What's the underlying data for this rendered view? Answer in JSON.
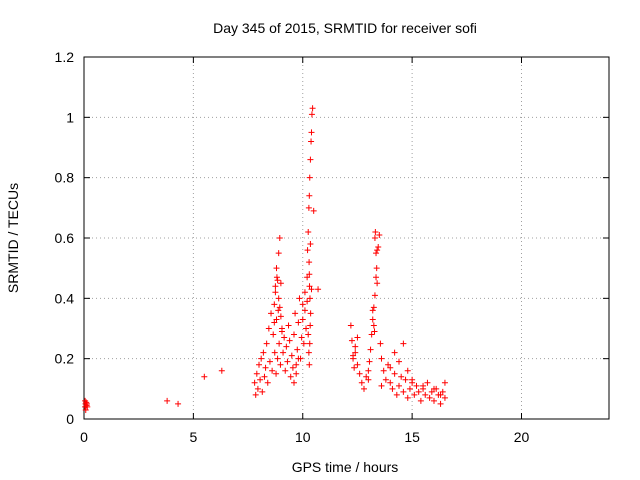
{
  "chart_data": {
    "type": "scatter",
    "title": "Day 345 of 2015, SRMTID for receiver sofi",
    "xlabel": "GPS time / hours",
    "ylabel": "SRMTID / TECUs",
    "xlim": [
      0,
      24
    ],
    "ylim": [
      0,
      1.2
    ],
    "xticks": [
      0,
      5,
      10,
      15,
      20
    ],
    "xtick_labels": [
      "0",
      "5",
      "10",
      "15",
      "20"
    ],
    "yticks": [
      0,
      0.2,
      0.4,
      0.6,
      0.8,
      1.0,
      1.2
    ],
    "ytick_labels": [
      "0",
      "0.2",
      "0.4",
      "0.6",
      "0.8",
      "1",
      "1.2"
    ],
    "grid": true,
    "marker": "+",
    "series": [
      {
        "name": "SRMTID",
        "color": "#ff0000",
        "x": [
          0.05,
          0.05,
          0.07,
          0.08,
          0.1,
          0.12,
          0.13,
          0.15,
          3.8,
          4.3,
          5.5,
          6.3,
          7.8,
          7.85,
          7.9,
          7.95,
          8.0,
          8.05,
          8.1,
          8.15,
          8.2,
          8.25,
          8.3,
          8.35,
          8.4,
          8.45,
          8.5,
          8.55,
          8.6,
          8.65,
          8.7,
          8.72,
          8.75,
          8.78,
          8.8,
          8.82,
          8.85,
          8.88,
          8.9,
          8.92,
          8.95,
          8.98,
          9.0,
          9.05,
          9.1,
          9.15,
          9.2,
          9.25,
          9.3,
          9.35,
          9.4,
          9.45,
          9.5,
          9.55,
          9.6,
          9.65,
          9.7,
          9.75,
          9.8,
          9.85,
          9.9,
          9.95,
          10.0,
          10.05,
          10.1,
          10.15,
          10.2,
          10.22,
          10.25,
          10.28,
          10.3,
          10.32,
          10.35,
          10.38,
          10.4,
          10.42,
          10.45,
          10.5,
          10.7,
          12.2,
          12.25,
          12.3,
          12.35,
          12.4,
          12.5,
          12.6,
          12.7,
          12.8,
          12.9,
          13.0,
          13.05,
          13.1,
          13.15,
          13.2,
          13.25,
          13.3,
          13.35,
          13.4,
          13.45,
          13.5,
          13.55,
          13.6,
          13.7,
          13.8,
          13.9,
          14.0,
          14.1,
          14.2,
          14.3,
          14.4,
          14.5,
          14.6,
          14.7,
          14.8,
          14.9,
          15.0,
          15.1,
          15.2,
          15.3,
          15.4,
          15.5,
          15.6,
          15.7,
          15.8,
          15.9,
          16.0,
          16.1,
          16.2,
          16.3,
          16.4,
          16.5,
          8.9,
          8.95,
          9.0,
          9.05,
          8.85,
          8.8,
          8.75,
          8.7,
          9.6,
          9.7,
          9.8,
          10.0,
          10.1,
          10.2,
          10.3,
          10.35,
          10.4,
          10.25,
          10.28,
          10.3,
          10.32,
          10.34,
          10.36,
          10.33,
          10.31,
          10.29,
          13.3,
          13.32,
          13.35,
          13.38,
          13.4,
          13.2,
          13.25,
          13.28,
          12.3,
          12.4,
          12.5,
          13.0,
          13.6,
          14.0,
          14.2,
          14.4,
          14.6,
          14.8,
          15.0,
          15.5,
          16.0,
          16.3,
          16.5
        ],
        "y": [
          0.06,
          0.04,
          0.05,
          0.03,
          0.055,
          0.045,
          0.05,
          0.04,
          0.06,
          0.05,
          0.14,
          0.16,
          0.12,
          0.08,
          0.15,
          0.1,
          0.18,
          0.13,
          0.2,
          0.09,
          0.22,
          0.14,
          0.17,
          0.25,
          0.12,
          0.3,
          0.19,
          0.35,
          0.16,
          0.28,
          0.38,
          0.22,
          0.42,
          0.15,
          0.33,
          0.47,
          0.2,
          0.36,
          0.55,
          0.25,
          0.6,
          0.18,
          0.45,
          0.3,
          0.22,
          0.27,
          0.16,
          0.24,
          0.19,
          0.31,
          0.26,
          0.14,
          0.21,
          0.17,
          0.28,
          0.35,
          0.18,
          0.23,
          0.32,
          0.4,
          0.2,
          0.27,
          0.38,
          0.25,
          0.42,
          0.3,
          0.47,
          0.56,
          0.62,
          0.7,
          0.74,
          0.8,
          0.86,
          0.92,
          0.95,
          1.01,
          1.03,
          0.69,
          0.43,
          0.31,
          0.26,
          0.2,
          0.17,
          0.22,
          0.18,
          0.15,
          0.12,
          0.1,
          0.14,
          0.16,
          0.19,
          0.23,
          0.28,
          0.33,
          0.37,
          0.41,
          0.47,
          0.56,
          0.57,
          0.61,
          0.25,
          0.2,
          0.16,
          0.13,
          0.18,
          0.12,
          0.1,
          0.15,
          0.08,
          0.11,
          0.14,
          0.09,
          0.13,
          0.07,
          0.1,
          0.12,
          0.08,
          0.11,
          0.09,
          0.06,
          0.1,
          0.08,
          0.12,
          0.07,
          0.09,
          0.06,
          0.1,
          0.08,
          0.05,
          0.09,
          0.07,
          0.4,
          0.37,
          0.34,
          0.29,
          0.46,
          0.5,
          0.44,
          0.32,
          0.12,
          0.15,
          0.2,
          0.33,
          0.36,
          0.39,
          0.48,
          0.58,
          0.43,
          0.28,
          0.22,
          0.18,
          0.25,
          0.31,
          0.35,
          0.4,
          0.44,
          0.52,
          0.6,
          0.62,
          0.55,
          0.5,
          0.45,
          0.36,
          0.31,
          0.29,
          0.21,
          0.24,
          0.27,
          0.13,
          0.11,
          0.17,
          0.22,
          0.19,
          0.25,
          0.16,
          0.13,
          0.11,
          0.1,
          0.08,
          0.12
        ]
      }
    ]
  }
}
